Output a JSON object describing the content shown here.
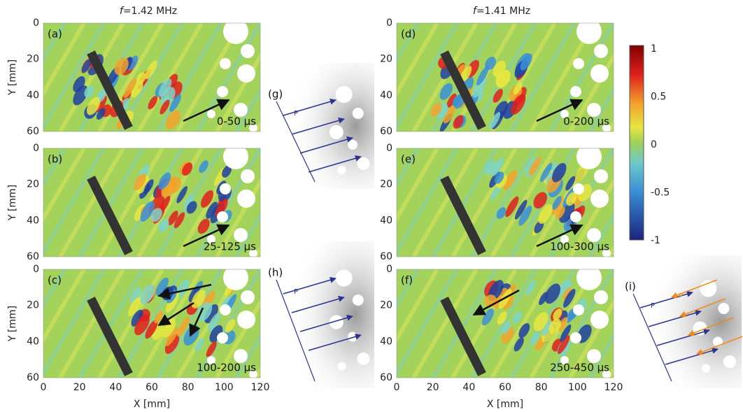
{
  "columns": [
    {
      "symbol": "f",
      "rest": "=1.42 MHz"
    },
    {
      "symbol": "f",
      "rest": "=1.41 MHz"
    }
  ],
  "panels": [
    {
      "label": "(a)",
      "time": "0-50 µs"
    },
    {
      "label": "(b)",
      "time": "25-125 µs"
    },
    {
      "label": "(c)",
      "time": "100-200 µs"
    },
    {
      "label": "(d)",
      "time": "0-200 µs"
    },
    {
      "label": "(e)",
      "time": "100-300 µs"
    },
    {
      "label": "(f)",
      "time": "250-450 µs"
    }
  ],
  "axes": {
    "y_label": "Y [mm]",
    "x_label": "X [mm]",
    "y_ticks": [
      "0",
      "20",
      "40",
      "60"
    ],
    "x_ticks": [
      "0",
      "20",
      "40",
      "60",
      "80",
      "100",
      "120"
    ]
  },
  "colorbar": {
    "ticks": [
      "1",
      "0.5",
      "0",
      "-0.5",
      "-1"
    ]
  },
  "diagrams": [
    {
      "label": "(g)",
      "waves": [
        "P"
      ]
    },
    {
      "label": "(h)",
      "waves": [
        "P"
      ]
    },
    {
      "label": "(i)",
      "waves": [
        "P",
        "P"
      ]
    }
  ]
}
